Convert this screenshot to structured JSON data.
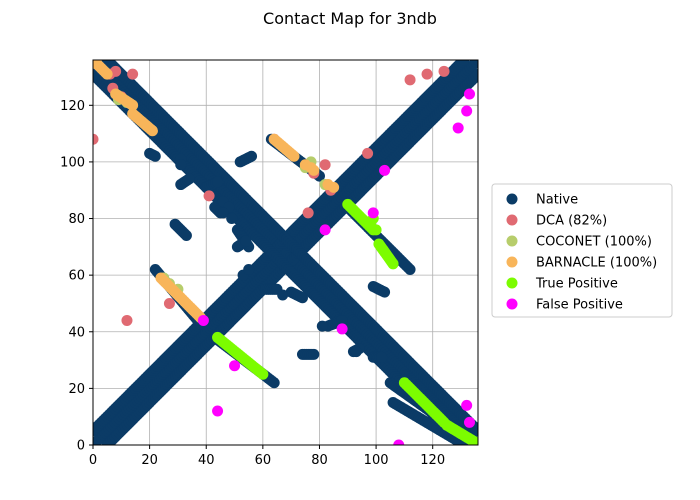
{
  "chart_data": {
    "type": "scatter",
    "title": "Contact Map for 3ndb",
    "xlabel": "",
    "ylabel": "",
    "xlim": [
      0,
      136
    ],
    "ylim": [
      0,
      136
    ],
    "xticks": [
      0,
      20,
      40,
      60,
      80,
      100,
      120
    ],
    "yticks": [
      0,
      20,
      40,
      60,
      80,
      100,
      120
    ],
    "grid": true,
    "legend_position": "right-outside",
    "series": [
      {
        "name": "Native",
        "color": "#0b3b66",
        "segments": [
          {
            "from": [
              0,
              0
            ],
            "to": [
              136,
              136
            ]
          },
          {
            "from": [
              0,
              136
            ],
            "to": [
              136,
              0
            ]
          },
          {
            "from": [
              0,
              5
            ],
            "to": [
              131,
              136
            ]
          },
          {
            "from": [
              5,
              0
            ],
            "to": [
              136,
              131
            ]
          },
          {
            "from": [
              0,
              131
            ],
            "to": [
              131,
              0
            ]
          },
          {
            "from": [
              5,
              136
            ],
            "to": [
              136,
              5
            ]
          },
          {
            "from": [
              20,
              103
            ],
            "to": [
              22,
              102
            ]
          },
          {
            "from": [
              22,
              62
            ],
            "to": [
              37,
              44
            ]
          },
          {
            "from": [
              43,
              38
            ],
            "to": [
              64,
              22
            ]
          },
          {
            "from": [
              63,
              108
            ],
            "to": [
              80,
              95
            ]
          },
          {
            "from": [
              90,
              84
            ],
            "to": [
              112,
              62
            ]
          },
          {
            "from": [
              105,
              22
            ],
            "to": [
              133,
              2
            ]
          },
          {
            "from": [
              106,
              15
            ],
            "to": [
              128,
              2
            ]
          },
          {
            "from": [
              31,
              92
            ],
            "to": [
              34,
              94
            ]
          },
          {
            "from": [
              29,
              78
            ],
            "to": [
              33,
              74
            ]
          },
          {
            "from": [
              40,
              91
            ],
            "to": [
              44,
              93
            ]
          },
          {
            "from": [
              43,
              84
            ],
            "to": [
              45,
              82
            ]
          },
          {
            "from": [
              51,
              76
            ],
            "to": [
              55,
              70
            ]
          },
          {
            "from": [
              51,
              70
            ],
            "to": [
              54,
              72
            ]
          },
          {
            "from": [
              52,
              100
            ],
            "to": [
              56,
              102
            ]
          },
          {
            "from": [
              61,
              55
            ],
            "to": [
              65,
              55
            ]
          },
          {
            "from": [
              70,
              54
            ],
            "to": [
              74,
              52
            ]
          },
          {
            "from": [
              74,
              32
            ],
            "to": [
              78,
              32
            ]
          },
          {
            "from": [
              83,
              42
            ],
            "to": [
              88,
              44
            ]
          },
          {
            "from": [
              92,
              33
            ],
            "to": [
              94,
              34
            ]
          },
          {
            "from": [
              99,
              56
            ],
            "to": [
              103,
              54
            ]
          },
          {
            "from": [
              99,
              31
            ],
            "to": [
              102,
              31
            ]
          }
        ],
        "points": [
          [
            31,
            101
          ],
          [
            31,
            99
          ],
          [
            46,
            86
          ],
          [
            48,
            84
          ],
          [
            46,
            82
          ],
          [
            49,
            80
          ],
          [
            53,
            60
          ],
          [
            55,
            62
          ],
          [
            67,
            53
          ],
          [
            81,
            42
          ],
          [
            93,
            33
          ]
        ]
      },
      {
        "name": "DCA (82%)",
        "color": "#e06a72",
        "points": [
          [
            0,
            108
          ],
          [
            7,
            126
          ],
          [
            8,
            132
          ],
          [
            14,
            131
          ],
          [
            12,
            44
          ],
          [
            27,
            50
          ],
          [
            41,
            88
          ],
          [
            64,
            108
          ],
          [
            76,
            82
          ],
          [
            78,
            96
          ],
          [
            82,
            99
          ],
          [
            84,
            90
          ],
          [
            97,
            103
          ],
          [
            112,
            129
          ],
          [
            118,
            131
          ],
          [
            124,
            132
          ],
          [
            6,
            131
          ],
          [
            10,
            123
          ]
        ]
      },
      {
        "name": "COCONET (100%)",
        "color": "#b7cd6b",
        "points": [
          [
            75,
            98
          ],
          [
            77,
            100
          ],
          [
            82,
            92
          ],
          [
            9,
            122
          ],
          [
            12,
            121
          ],
          [
            25,
            59
          ],
          [
            27,
            57
          ],
          [
            30,
            55
          ]
        ]
      },
      {
        "name": "BARNACLE (100%)",
        "color": "#f8b55a",
        "segments": [
          {
            "from": [
              1,
              135
            ],
            "to": [
              5,
              131
            ]
          },
          {
            "from": [
              8,
              124
            ],
            "to": [
              14,
              120
            ]
          },
          {
            "from": [
              14,
              117
            ],
            "to": [
              21,
              111
            ]
          },
          {
            "from": [
              24,
              59
            ],
            "to": [
              38,
              45
            ]
          },
          {
            "from": [
              64,
              108
            ],
            "to": [
              71,
              102
            ]
          }
        ],
        "points": [
          [
            75,
            99
          ],
          [
            77,
            98
          ],
          [
            83,
            92
          ],
          [
            85,
            91
          ],
          [
            78,
            97
          ]
        ]
      },
      {
        "name": "True Positive",
        "color": "#7cfc00",
        "segments": [
          {
            "from": [
              44,
              38
            ],
            "to": [
              60,
              25
            ]
          },
          {
            "from": [
              90,
              85
            ],
            "to": [
              99,
              76
            ]
          },
          {
            "from": [
              101,
              71
            ],
            "to": [
              106,
              64
            ]
          },
          {
            "from": [
              110,
              22
            ],
            "to": [
              124,
              8
            ]
          },
          {
            "from": [
              125,
              7
            ],
            "to": [
              135,
              1
            ]
          }
        ],
        "points": [
          [
            98,
            78
          ],
          [
            100,
            76
          ],
          [
            99,
            80
          ]
        ]
      },
      {
        "name": "False Positive",
        "color": "#ff00ff",
        "points": [
          [
            133,
            124
          ],
          [
            132,
            118
          ],
          [
            129,
            112
          ],
          [
            103,
            97
          ],
          [
            99,
            82
          ],
          [
            82,
            76
          ],
          [
            88,
            41
          ],
          [
            50,
            28
          ],
          [
            44,
            12
          ],
          [
            39,
            44
          ],
          [
            108,
            0
          ],
          [
            132,
            14
          ],
          [
            133,
            8
          ]
        ]
      }
    ]
  }
}
